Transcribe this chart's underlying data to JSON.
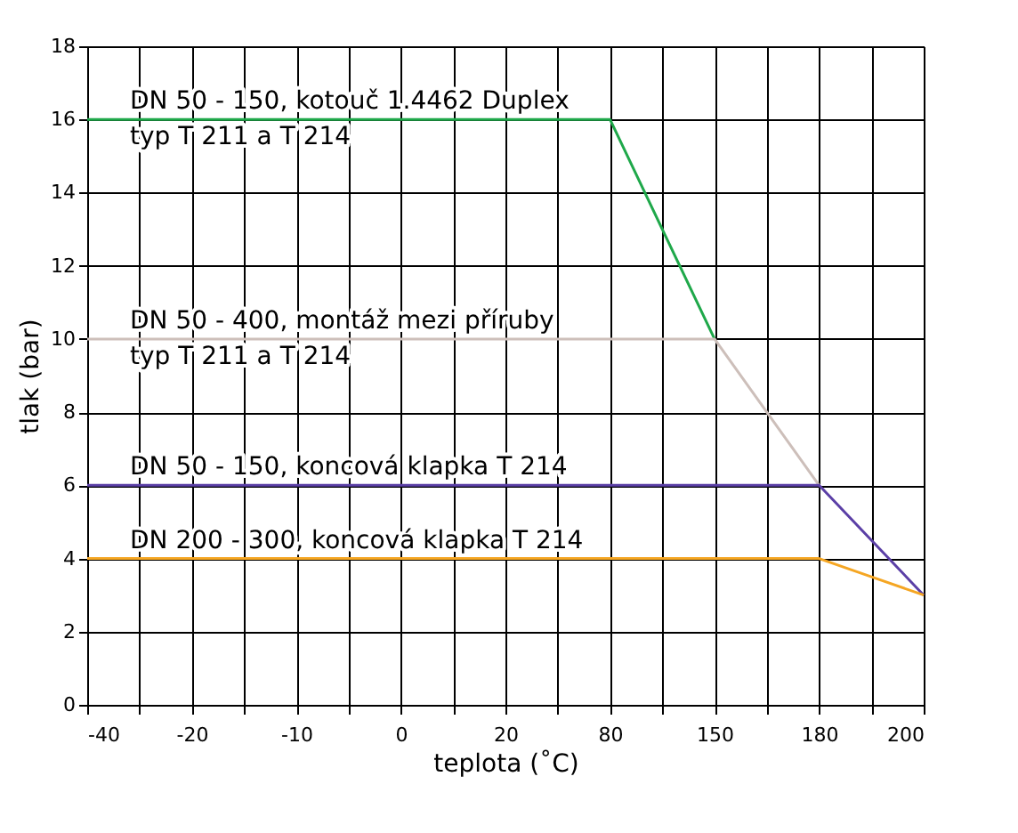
{
  "chart_data": {
    "type": "line",
    "xlabel": "teplota (˚C)",
    "ylabel": "tlak (bar)",
    "categories": [
      "-40",
      null,
      "-20",
      null,
      "-10",
      null,
      "0",
      null,
      "20",
      null,
      "80",
      null,
      "150",
      null,
      "180",
      null,
      "200"
    ],
    "series": [
      {
        "name": "DN 50 - 150, kotouč 1.4462 Duplex\ntyp T 211 a T 214",
        "color": "#1fa84a",
        "values": [
          16,
          16,
          16,
          16,
          16,
          16,
          16,
          16,
          16,
          16,
          16,
          13,
          10,
          null,
          null,
          null,
          null
        ]
      },
      {
        "name": "DN 50 - 400, montáž mezi příruby\ntyp T 211 a T 214",
        "color": "#cdbfba",
        "values": [
          10,
          10,
          10,
          10,
          10,
          10,
          10,
          10,
          10,
          10,
          10,
          10,
          10,
          8,
          6,
          null,
          null
        ]
      },
      {
        "name": "DN 50 - 150, koncová klapka T 214",
        "color": "#5b3fa6",
        "values": [
          6,
          6,
          6,
          6,
          6,
          6,
          6,
          6,
          6,
          6,
          6,
          6,
          6,
          6,
          6,
          4.5,
          3
        ]
      },
      {
        "name": "DN 200 - 300, koncová klapka T 214",
        "color": "#f5a623",
        "values": [
          4,
          4,
          4,
          4,
          4,
          4,
          4,
          4,
          4,
          4,
          4,
          4,
          4,
          4,
          4,
          3.5,
          3
        ]
      }
    ],
    "ylim": [
      0,
      18
    ],
    "yticks": [
      0,
      2,
      4,
      6,
      8,
      10,
      12,
      14,
      16,
      18
    ],
    "grid": true,
    "legend": false,
    "marker": "none",
    "line_style": "solid"
  }
}
